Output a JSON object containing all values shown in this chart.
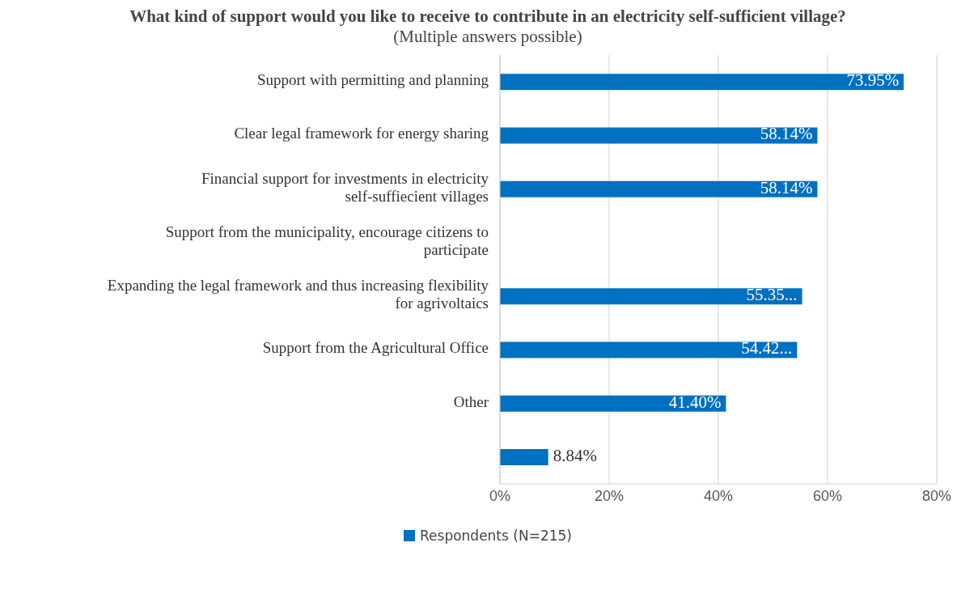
{
  "chart_data": {
    "type": "bar",
    "orientation": "horizontal",
    "title": "What kind of support would you like to receive to contribute in an electricity self-sufficient village?",
    "subtitle": "(Multiple answers possible)",
    "categories": [
      "Support with permitting and planning",
      "Clear legal framework for energy sharing",
      "Financial support for investments in electricity self-suffiecient villages",
      "Support from the municipality, encourage citizens to participate",
      "Expanding the legal framework and thus increasing flexibility for agrivoltaics",
      "Support from the Agricultural Office",
      "Other",
      null
    ],
    "series": [
      {
        "name": "Respondents (N=215)",
        "color": "#0070c0",
        "values": [
          73.95,
          58.14,
          58.14,
          null,
          55.35,
          54.42,
          41.4,
          8.84
        ],
        "value_labels": [
          "73.95%",
          "58.14%",
          "58.14%",
          null,
          "55.35...",
          "54.42...",
          "41.40%",
          "8.84%"
        ]
      }
    ],
    "xlim": [
      0,
      80
    ],
    "xticks": [
      {
        "value": 0,
        "label": "0%"
      },
      {
        "value": 20,
        "label": "20%"
      },
      {
        "value": 40,
        "label": "40%"
      },
      {
        "value": 60,
        "label": "60%"
      },
      {
        "value": 80,
        "label": "80%"
      }
    ],
    "grid": "x",
    "legend": "bottom"
  }
}
